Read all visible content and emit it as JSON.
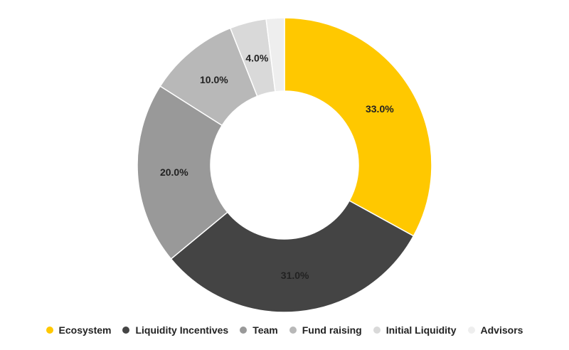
{
  "chart_data": {
    "type": "pie",
    "title": "",
    "categories": [
      "Ecosystem",
      "Liquidity Incentives",
      "Team",
      "Fund raising",
      "Initial Liquidity",
      "Advisors"
    ],
    "values": [
      33.0,
      31.0,
      20.0,
      10.0,
      4.0,
      2.0
    ],
    "labels": [
      "33.0%",
      "31.0%",
      "20.0%",
      "10.0%",
      "4.0%",
      ""
    ],
    "colors": [
      "#FFC800",
      "#444444",
      "#999999",
      "#B8B8B8",
      "#D9D9D9",
      "#EEEEEE"
    ],
    "legend_position": "bottom"
  }
}
